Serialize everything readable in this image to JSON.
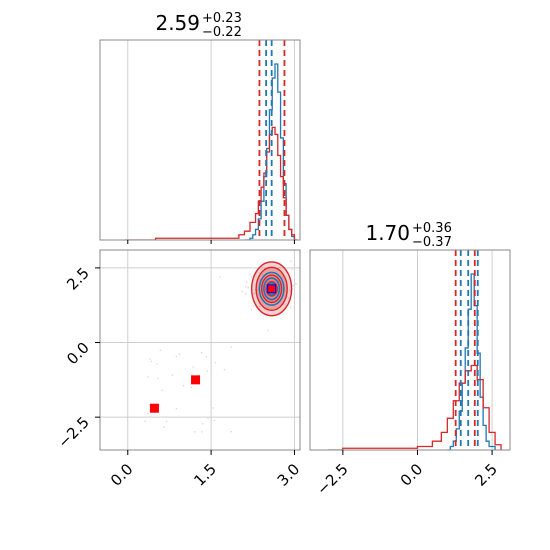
{
  "chart_data": [
    {
      "panel": "marginal-x",
      "type": "histogram",
      "title": {
        "value": "2.59",
        "plus": "+0.23",
        "minus": "−0.22"
      },
      "xlim": [
        -0.5,
        3.1
      ],
      "grid": true,
      "series": [
        {
          "color": "#1f77b4",
          "bins": [
            [
              2.1,
              0.0
            ],
            [
              2.2,
              0.01
            ],
            [
              2.25,
              0.03
            ],
            [
              2.3,
              0.06
            ],
            [
              2.35,
              0.12
            ],
            [
              2.4,
              0.22
            ],
            [
              2.45,
              0.36
            ],
            [
              2.5,
              0.52
            ],
            [
              2.55,
              0.74
            ],
            [
              2.6,
              0.92
            ],
            [
              2.65,
              1.0
            ],
            [
              2.7,
              0.84
            ],
            [
              2.75,
              0.58
            ],
            [
              2.8,
              0.32
            ],
            [
              2.85,
              0.14
            ],
            [
              2.9,
              0.06
            ],
            [
              2.95,
              0.02
            ],
            [
              3.0,
              0.0
            ]
          ]
        },
        {
          "color": "#d62728",
          "bins": [
            [
              -0.05,
              0.0
            ],
            [
              0.5,
              0.01
            ],
            [
              1.5,
              0.01
            ],
            [
              2.0,
              0.03
            ],
            [
              2.1,
              0.05
            ],
            [
              2.2,
              0.1
            ],
            [
              2.3,
              0.15
            ],
            [
              2.35,
              0.22
            ],
            [
              2.4,
              0.3
            ],
            [
              2.45,
              0.38
            ],
            [
              2.5,
              0.5
            ],
            [
              2.55,
              0.6
            ],
            [
              2.6,
              0.64
            ],
            [
              2.65,
              0.6
            ],
            [
              2.7,
              0.48
            ],
            [
              2.75,
              0.36
            ],
            [
              2.8,
              0.24
            ],
            [
              2.85,
              0.14
            ],
            [
              2.9,
              0.06
            ],
            [
              2.95,
              0.03
            ],
            [
              3.0,
              0.0
            ]
          ]
        }
      ],
      "quantile_lines": [
        {
          "color": "#d62728",
          "x": 2.37
        },
        {
          "color": "#1f77b4",
          "x": 2.49
        },
        {
          "color": "#1f77b4",
          "x": 2.59
        },
        {
          "color": "#d62728",
          "x": 2.82
        }
      ]
    },
    {
      "panel": "joint",
      "type": "scatter-contour",
      "xlim": [
        -0.5,
        3.1
      ],
      "ylim": [
        -3.6,
        3.1
      ],
      "xticks": [
        "0.0",
        "1.5",
        "3.0"
      ],
      "yticks": [
        "2.5",
        "0.0",
        "−2.5"
      ],
      "grid": true,
      "peak": [
        2.59,
        1.8
      ],
      "square_markers": [
        {
          "x": 2.59,
          "y": 1.8,
          "color": "#0000ff"
        },
        {
          "x": 2.59,
          "y": 1.8,
          "color": "#ff0000"
        },
        {
          "x": 1.22,
          "y": -1.25,
          "color": "#ff0000"
        },
        {
          "x": 0.48,
          "y": -2.2,
          "color": "#ff0000"
        }
      ],
      "red_contours": [
        [
          0.36,
          0.9
        ],
        [
          0.28,
          0.72
        ],
        [
          0.18,
          0.46
        ],
        [
          0.1,
          0.24
        ]
      ],
      "blue_contours": [
        [
          0.22,
          0.55
        ],
        [
          0.14,
          0.36
        ],
        [
          0.08,
          0.2
        ]
      ],
      "red_fill": "#e8787a",
      "scatter_color": "#d9d9e6"
    },
    {
      "panel": "marginal-y",
      "type": "histogram",
      "title": {
        "value": "1.70",
        "plus": "+0.36",
        "minus": "−0.37"
      },
      "xlim": [
        -3.6,
        3.1
      ],
      "xticks": [
        "−2.5",
        "0.0",
        "2.5"
      ],
      "grid": true,
      "series": [
        {
          "color": "#1f77b4",
          "bins": [
            [
              1.0,
              0.0
            ],
            [
              1.1,
              0.02
            ],
            [
              1.2,
              0.05
            ],
            [
              1.3,
              0.12
            ],
            [
              1.4,
              0.22
            ],
            [
              1.5,
              0.38
            ],
            [
              1.6,
              0.58
            ],
            [
              1.7,
              0.8
            ],
            [
              1.8,
              1.0
            ],
            [
              1.9,
              0.82
            ],
            [
              2.0,
              0.55
            ],
            [
              2.1,
              0.3
            ],
            [
              2.2,
              0.14
            ],
            [
              2.3,
              0.05
            ],
            [
              2.4,
              0.02
            ],
            [
              2.6,
              0.0
            ]
          ]
        },
        {
          "color": "#d62728",
          "bins": [
            [
              -3.0,
              0.0
            ],
            [
              -2.5,
              0.01
            ],
            [
              -1.5,
              0.01
            ],
            [
              -0.5,
              0.01
            ],
            [
              0.0,
              0.02
            ],
            [
              0.5,
              0.05
            ],
            [
              0.8,
              0.1
            ],
            [
              1.0,
              0.18
            ],
            [
              1.2,
              0.28
            ],
            [
              1.4,
              0.38
            ],
            [
              1.6,
              0.45
            ],
            [
              1.8,
              0.48
            ],
            [
              2.0,
              0.4
            ],
            [
              2.2,
              0.24
            ],
            [
              2.4,
              0.1
            ],
            [
              2.6,
              0.03
            ],
            [
              2.8,
              0.0
            ]
          ]
        }
      ],
      "quantile_lines": [
        {
          "color": "#d62728",
          "x": 1.28
        },
        {
          "color": "#1f77b4",
          "x": 1.45
        },
        {
          "color": "#1f77b4",
          "x": 1.7
        },
        {
          "color": "#d62728",
          "x": 1.92
        },
        {
          "color": "#1f77b4",
          "x": 2.02
        }
      ]
    }
  ]
}
